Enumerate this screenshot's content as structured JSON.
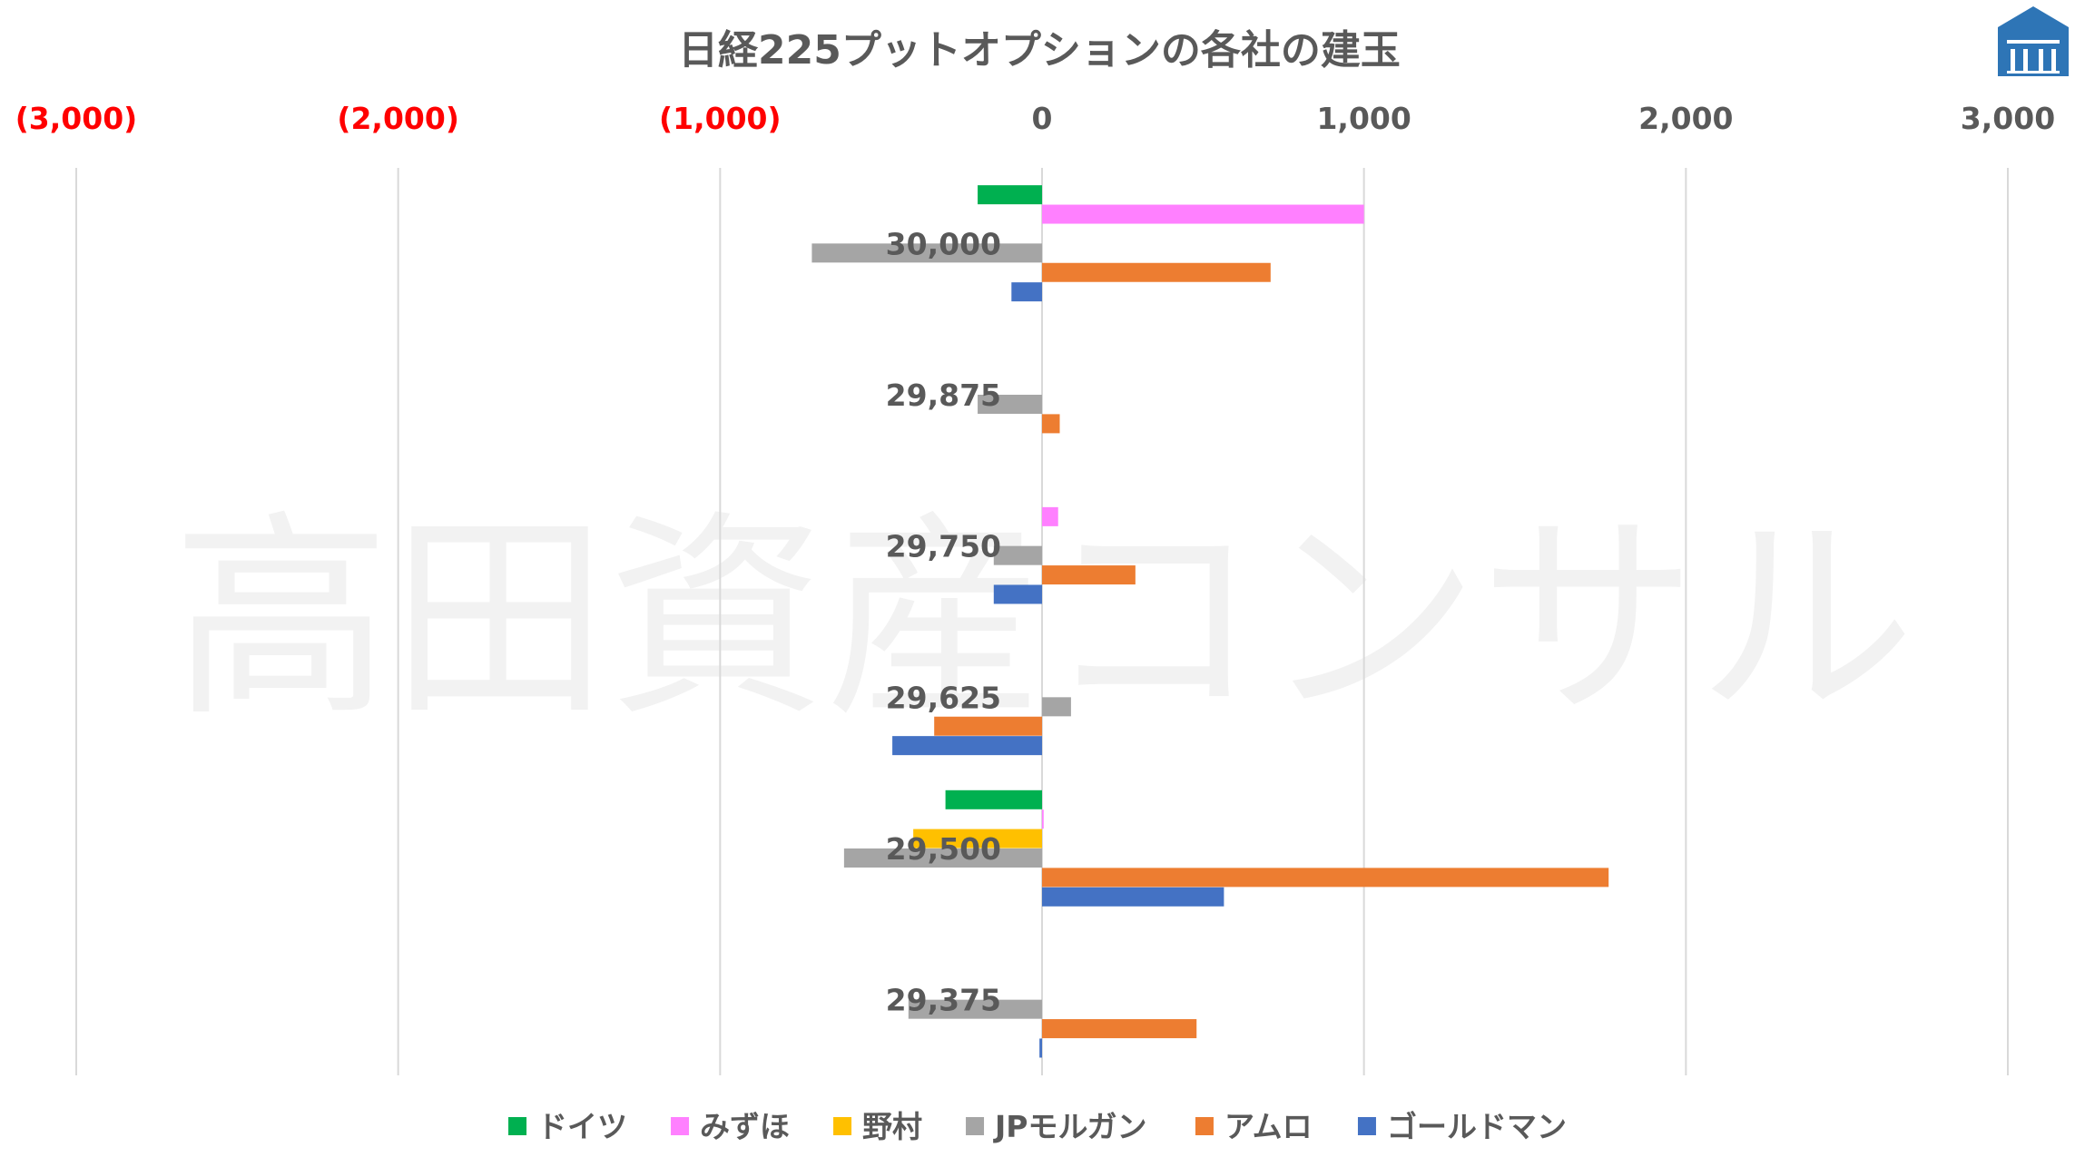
{
  "chart_data": {
    "type": "bar",
    "orientation": "horizontal",
    "title": "日経225プットオプションの各社の建玉",
    "categories": [
      "30,000",
      "29,875",
      "29,750",
      "29,625",
      "29,500",
      "29,375"
    ],
    "xlim": [
      -3000,
      3000
    ],
    "x_ticks": [
      -3000,
      -2000,
      -1000,
      0,
      1000,
      2000,
      3000
    ],
    "x_tick_labels": [
      "(3,000)",
      "(2,000)",
      "(1,000)",
      "0",
      "1,000",
      "2,000",
      "3,000"
    ],
    "negative_tick_color": "#ff0000",
    "positive_tick_color": "#595959",
    "grid": true,
    "legend_position": "bottom",
    "series": [
      {
        "name": "ドイツ",
        "color": "#00b050",
        "values": [
          -200,
          0,
          0,
          0,
          -300,
          0
        ]
      },
      {
        "name": "みずほ",
        "color": "#ff80ff",
        "values": [
          1000,
          0,
          50,
          0,
          5,
          0
        ]
      },
      {
        "name": "野村",
        "color": "#ffc000",
        "values": [
          0,
          0,
          0,
          0,
          -400,
          0
        ]
      },
      {
        "name": "JPモルガン",
        "color": "#a5a5a5",
        "values": [
          -715,
          -200,
          -150,
          90,
          -615,
          -415
        ]
      },
      {
        "name": "アムロ",
        "color": "#ed7d31",
        "values": [
          710,
          55,
          290,
          -335,
          1760,
          480
        ]
      },
      {
        "name": "ゴールドマン",
        "color": "#4472c4",
        "values": [
          -95,
          0,
          -150,
          -465,
          565,
          -8
        ]
      }
    ]
  },
  "watermark": "高田資産コンサル",
  "logo": {
    "name": "building-logo-icon",
    "color": "#2e75b6"
  }
}
